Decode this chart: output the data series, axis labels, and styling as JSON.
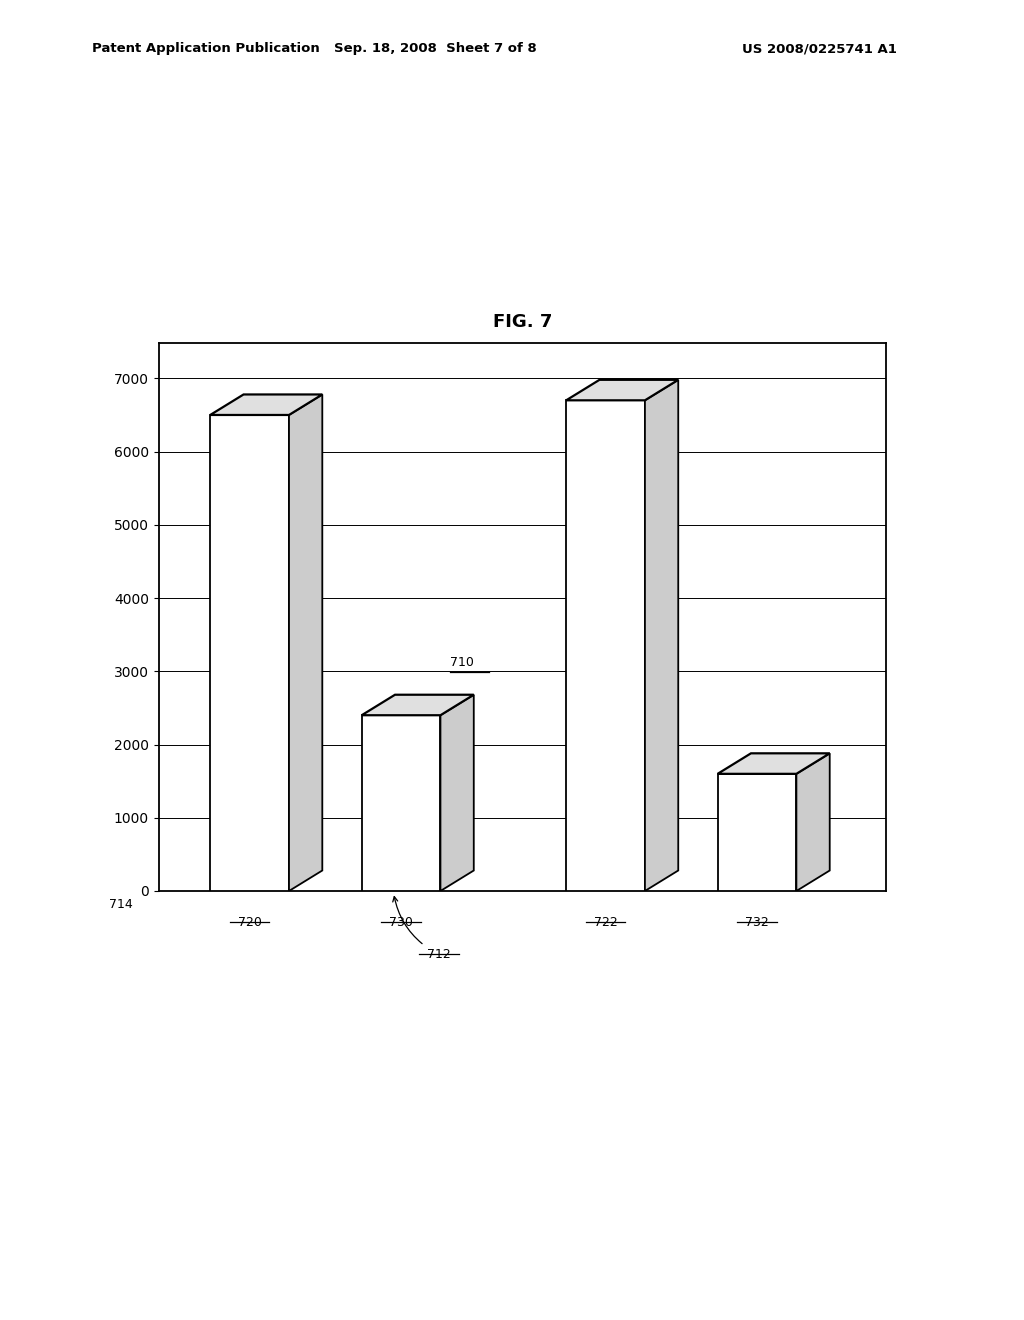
{
  "title": "FIG. 7",
  "patent_left": "Patent Application Publication",
  "patent_mid": "Sep. 18, 2008  Sheet 7 of 8",
  "patent_right": "US 2008/0225741 A1",
  "bars": [
    {
      "label": "720",
      "value": 6500
    },
    {
      "label": "730",
      "value": 2400
    },
    {
      "label": "722",
      "value": 6700
    },
    {
      "label": "732",
      "value": 1600
    }
  ],
  "ref_710": "710",
  "ref_712": "712",
  "ref_714": "714",
  "ylim_max": 7000,
  "yticks": [
    0,
    1000,
    2000,
    3000,
    4000,
    5000,
    6000,
    7000
  ],
  "bar_color_front": "#ffffff",
  "bar_color_top": "#e0e0e0",
  "bar_color_side": "#cccccc",
  "bar_edge_color": "#000000",
  "depth_x": 0.22,
  "depth_y": 280,
  "bar_width": 0.52,
  "background_color": "#ffffff",
  "bar_positions": [
    0.55,
    1.55,
    2.9,
    3.9
  ],
  "xlim_min": -0.05,
  "xlim_max": 4.75
}
